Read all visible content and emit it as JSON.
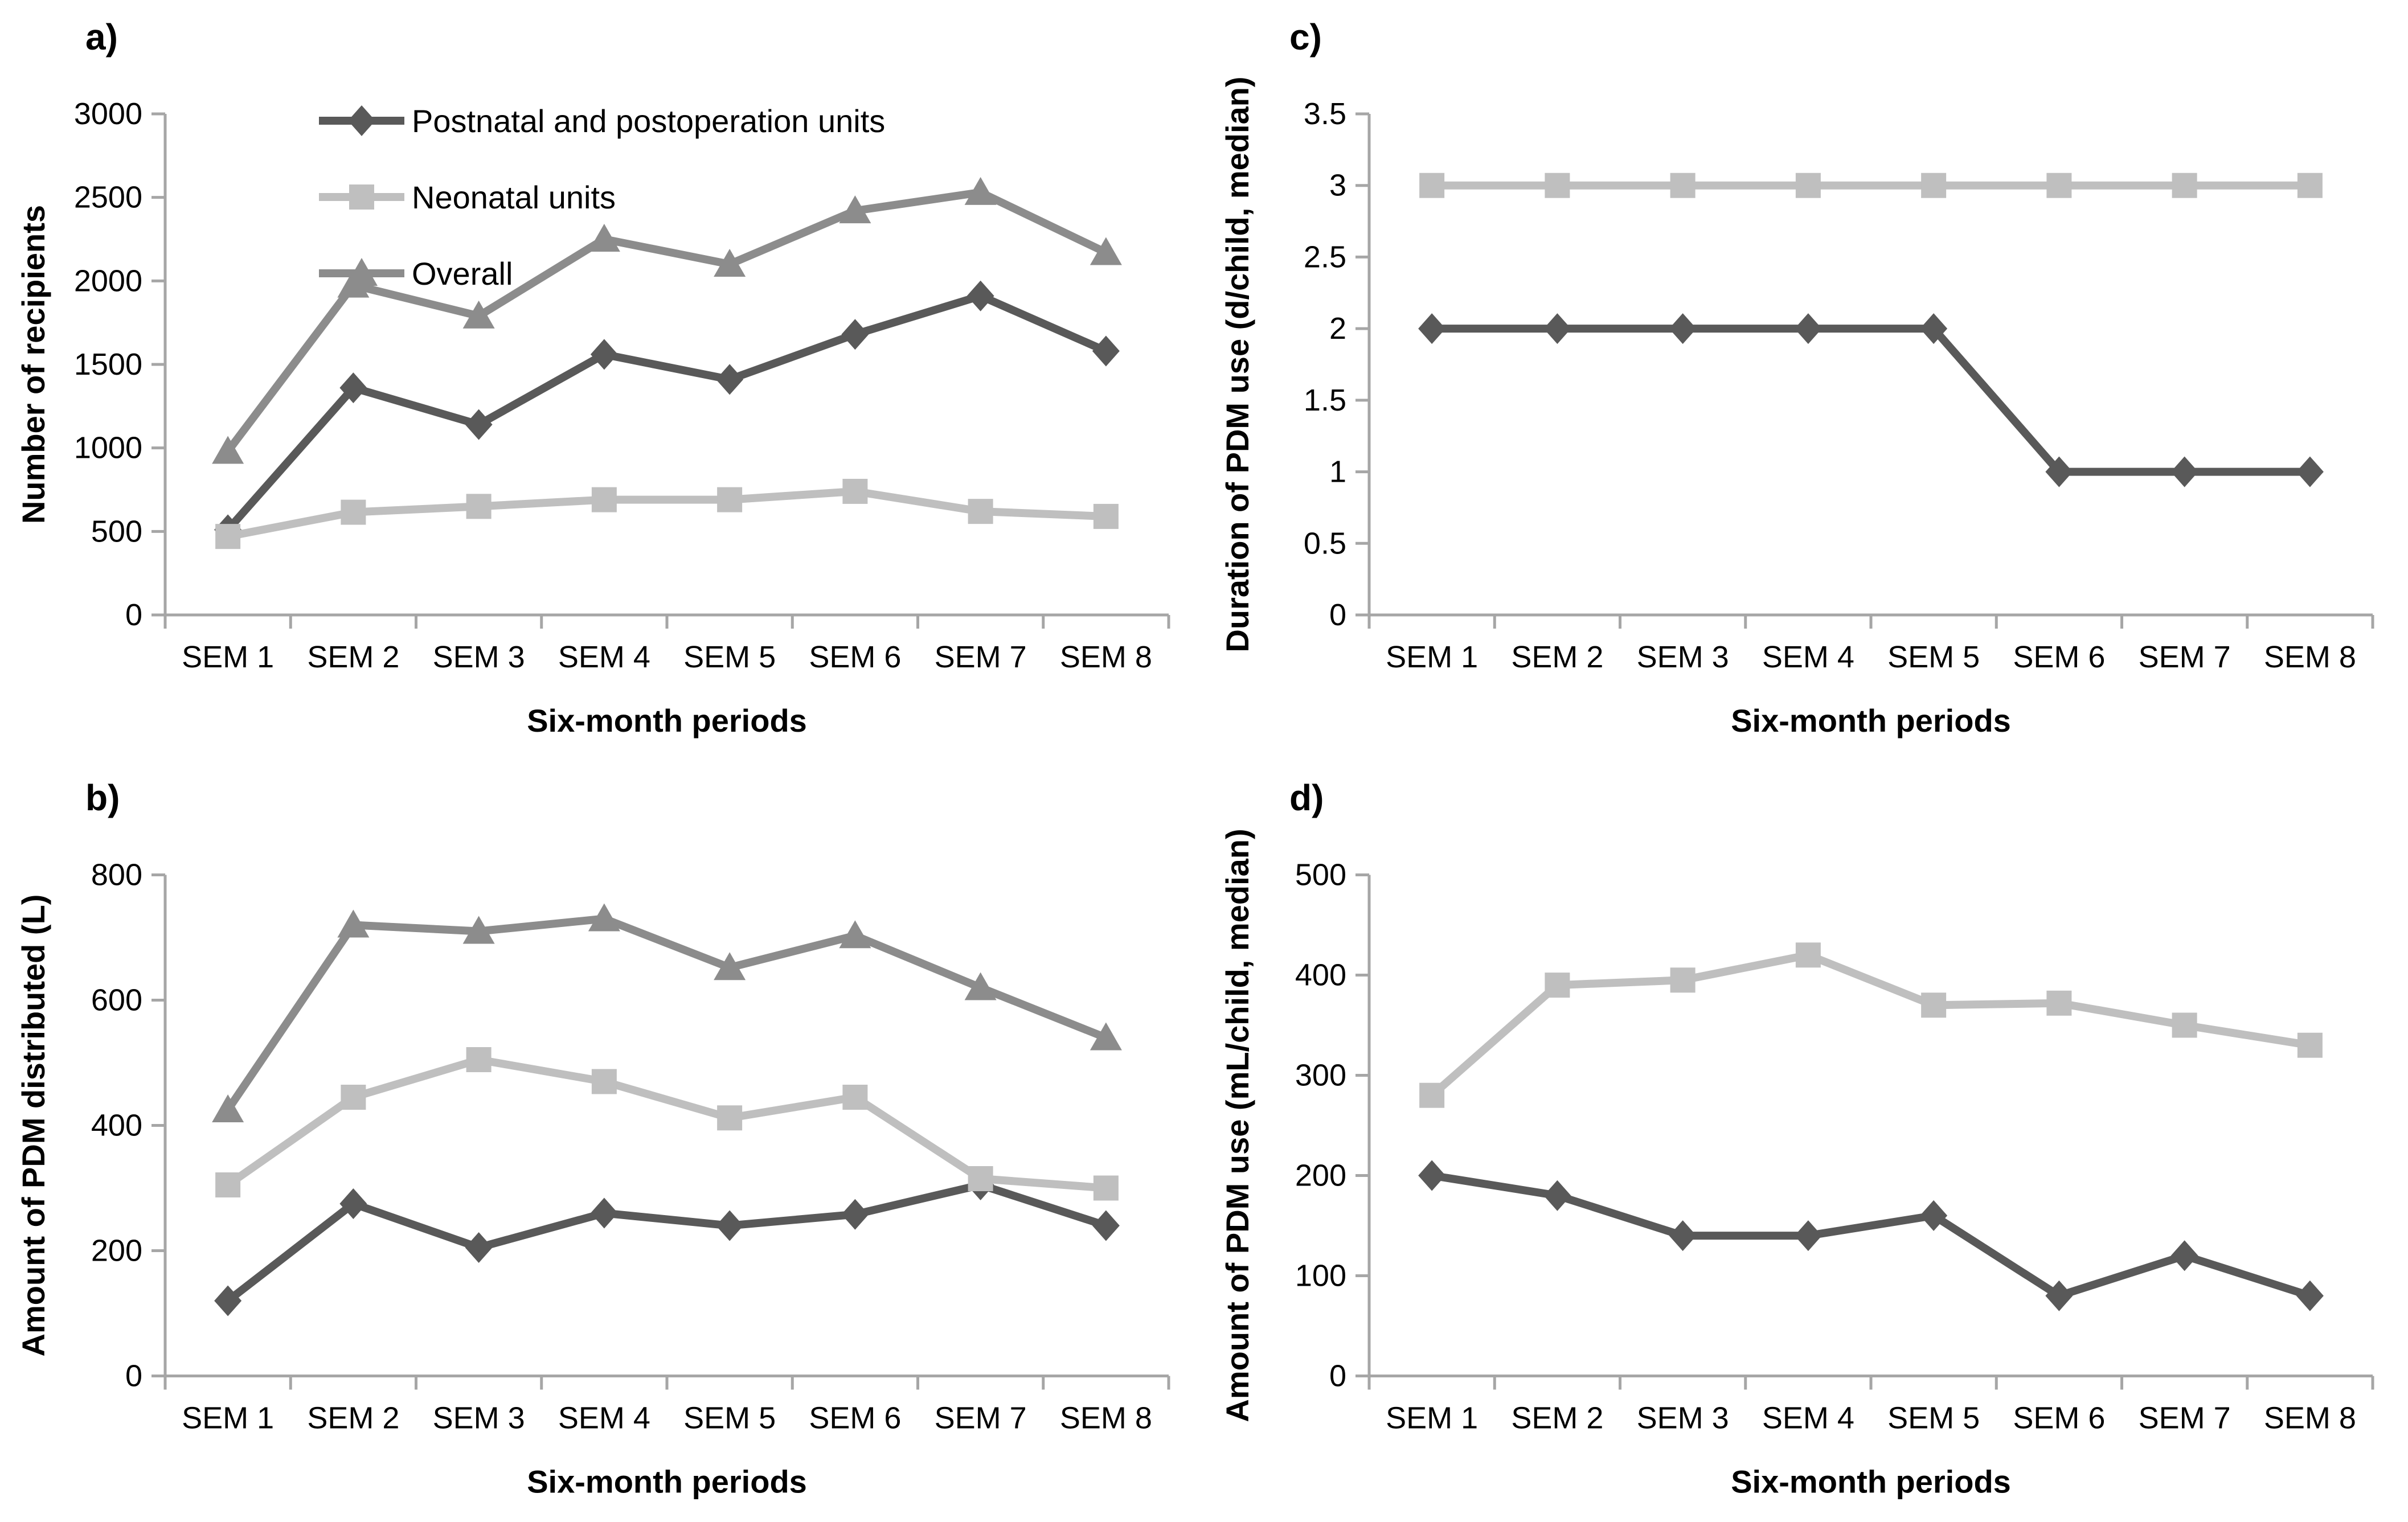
{
  "style": {
    "background": "#ffffff",
    "axis_color": "#a6a6a6",
    "text_color": "#000000",
    "series_colors": {
      "postnatal": "#595959",
      "neonatal": "#bfbfbf",
      "overall": "#8c8c8c"
    }
  },
  "chart_data": [
    {
      "panel": "a)",
      "type": "line",
      "title": "",
      "xlabel": "Six-month periods",
      "ylabel": "Number of recipients",
      "categories": [
        "SEM 1",
        "SEM 2",
        "SEM 3",
        "SEM 4",
        "SEM 5",
        "SEM 6",
        "SEM 7",
        "SEM 8"
      ],
      "ylim": [
        0,
        3000
      ],
      "yticks": [
        "0",
        "500",
        "1000",
        "1500",
        "2000",
        "2500",
        "3000"
      ],
      "grid": false,
      "legend": true,
      "legend_position": "top-left-inside",
      "series": [
        {
          "name": "Postnatal and postoperation units",
          "marker": "diamond",
          "color": "#595959",
          "values": [
            510,
            1360,
            1140,
            1560,
            1410,
            1680,
            1910,
            1580
          ]
        },
        {
          "name": "Neonatal units",
          "marker": "square",
          "color": "#bfbfbf",
          "values": [
            470,
            615,
            650,
            690,
            690,
            740,
            620,
            590
          ]
        },
        {
          "name": "Overall",
          "marker": "triangle",
          "color": "#8c8c8c",
          "values": [
            980,
            1975,
            1790,
            2250,
            2100,
            2420,
            2530,
            2170
          ]
        }
      ]
    },
    {
      "panel": "c)",
      "type": "line",
      "title": "",
      "xlabel": "Six-month periods",
      "ylabel": "Duration of PDM use (d/child, median)",
      "categories": [
        "SEM 1",
        "SEM 2",
        "SEM 3",
        "SEM 4",
        "SEM 5",
        "SEM 6",
        "SEM 7",
        "SEM 8"
      ],
      "ylim": [
        0,
        3.5
      ],
      "yticks": [
        "0",
        "0.5",
        "1",
        "1.5",
        "2",
        "2.5",
        "3",
        "3.5"
      ],
      "grid": false,
      "legend": false,
      "series": [
        {
          "name": "Postnatal and postoperation units",
          "marker": "diamond",
          "color": "#595959",
          "values": [
            2,
            2,
            2,
            2,
            2,
            1,
            1,
            1
          ]
        },
        {
          "name": "Neonatal units",
          "marker": "square",
          "color": "#bfbfbf",
          "values": [
            3,
            3,
            3,
            3,
            3,
            3,
            3,
            3
          ]
        }
      ]
    },
    {
      "panel": "b)",
      "type": "line",
      "title": "",
      "xlabel": "Six-month periods",
      "ylabel": "Amount of PDM distributed (L)",
      "categories": [
        "SEM 1",
        "SEM 2",
        "SEM 3",
        "SEM 4",
        "SEM 5",
        "SEM 6",
        "SEM 7",
        "SEM 8"
      ],
      "ylim": [
        0,
        800
      ],
      "yticks": [
        "0",
        "200",
        "400",
        "600",
        "800"
      ],
      "grid": false,
      "legend": false,
      "series": [
        {
          "name": "Postnatal and postoperation units",
          "marker": "diamond",
          "color": "#595959",
          "values": [
            120,
            275,
            205,
            260,
            240,
            258,
            305,
            240
          ]
        },
        {
          "name": "Neonatal units",
          "marker": "square",
          "color": "#bfbfbf",
          "values": [
            305,
            445,
            505,
            470,
            412,
            445,
            315,
            300
          ]
        },
        {
          "name": "Overall",
          "marker": "triangle",
          "color": "#8c8c8c",
          "values": [
            425,
            720,
            710,
            730,
            652,
            703,
            620,
            540
          ]
        }
      ]
    },
    {
      "panel": "d)",
      "type": "line",
      "title": "",
      "xlabel": "Six-month periods",
      "ylabel": "Amount of PDM use (mL/child, median)",
      "categories": [
        "SEM 1",
        "SEM 2",
        "SEM 3",
        "SEM 4",
        "SEM 5",
        "SEM 6",
        "SEM 7",
        "SEM 8"
      ],
      "ylim": [
        0,
        500
      ],
      "yticks": [
        "0",
        "100",
        "200",
        "300",
        "400",
        "500"
      ],
      "grid": false,
      "legend": false,
      "series": [
        {
          "name": "Postnatal and postoperation units",
          "marker": "diamond",
          "color": "#595959",
          "values": [
            200,
            180,
            140,
            140,
            160,
            80,
            120,
            80
          ]
        },
        {
          "name": "Neonatal units",
          "marker": "square",
          "color": "#bfbfbf",
          "values": [
            280,
            390,
            395,
            420,
            370,
            372,
            350,
            330
          ]
        }
      ]
    }
  ]
}
